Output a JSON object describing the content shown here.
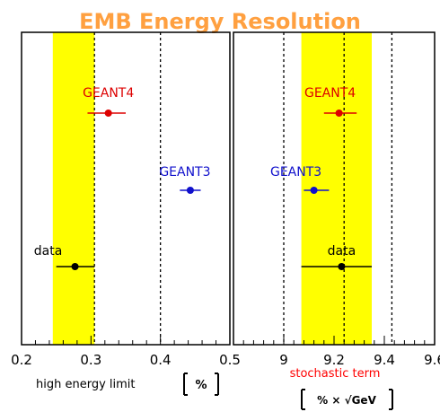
{
  "chart_data": {
    "title": "EMB Energy Resolution",
    "panels": [
      {
        "type": "scatter",
        "subtype": "comparison-with-error-bars",
        "xlim": [
          0.2,
          0.5
        ],
        "xticks": [
          "0.2",
          "0.3",
          "0.4",
          "0.5"
        ],
        "xlabel": "high energy limit",
        "xunit": "%",
        "band": {
          "from": 0.245,
          "to": 0.305,
          "color": "#ffff00"
        },
        "dashed_reference_lines": [
          0.305,
          0.4
        ],
        "points": [
          {
            "label": "GEANT4",
            "x": 0.325,
            "xerr_low": 0.295,
            "xerr_high": 0.35,
            "color": "#dd0000"
          },
          {
            "label": "GEANT3",
            "x": 0.443,
            "xerr_low": 0.428,
            "xerr_high": 0.458,
            "color": "#1010cc"
          },
          {
            "label": "data",
            "x": 0.277,
            "xerr_low": 0.25,
            "xerr_high": 0.305,
            "color": "#000000"
          }
        ]
      },
      {
        "type": "scatter",
        "subtype": "comparison-with-error-bars",
        "xlim": [
          8.8,
          9.6
        ],
        "xticks": [
          "9",
          "9.2",
          "9.4",
          "9.6"
        ],
        "xlabel": "stochastic term",
        "xlabel_color": "#ff0000",
        "xunit": "% × √GeV",
        "band": {
          "from": 9.07,
          "to": 9.35,
          "color": "#ffff00"
        },
        "dashed_reference_lines": [
          9.0,
          9.24,
          9.43
        ],
        "points": [
          {
            "label": "GEANT4",
            "x": 9.22,
            "xerr_low": 9.16,
            "xerr_high": 9.29,
            "color": "#dd0000"
          },
          {
            "label": "GEANT3",
            "x": 9.12,
            "xerr_low": 9.08,
            "xerr_high": 9.18,
            "color": "#1010cc"
          },
          {
            "label": "data",
            "x": 9.23,
            "xerr_low": 9.07,
            "xerr_high": 9.35,
            "color": "#000000"
          }
        ]
      }
    ],
    "title_color": "#ffa040"
  }
}
